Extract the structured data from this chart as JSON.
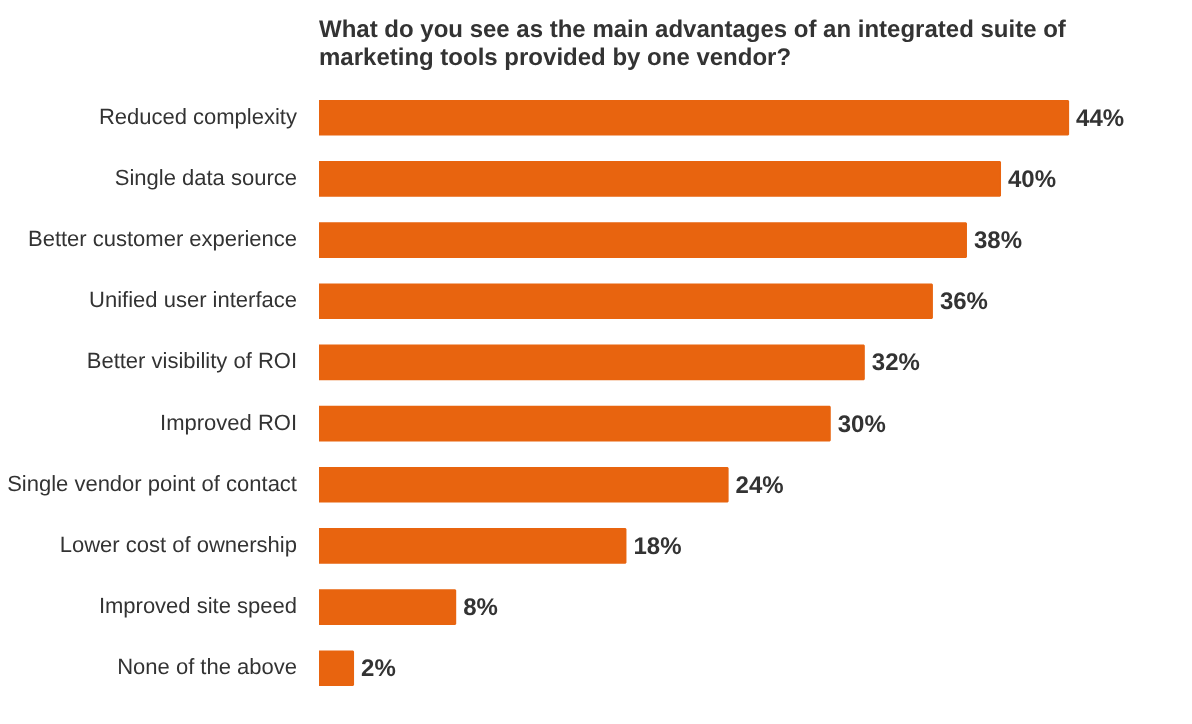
{
  "chart_data": {
    "type": "bar",
    "orientation": "horizontal",
    "title": "What do you see as the main advantages of an integrated suite of marketing tools provided by one vendor?",
    "categories": [
      "Reduced complexity",
      "Single data source",
      "Better customer experience",
      "Unified user interface",
      "Better visibility of ROI",
      "Improved ROI",
      "Single vendor point of contact",
      "Lower cost of ownership",
      "Improved site speed",
      "None of the above"
    ],
    "values": [
      44,
      40,
      38,
      36,
      32,
      30,
      24,
      18,
      8,
      2
    ],
    "value_labels": [
      "44%",
      "40%",
      "38%",
      "36%",
      "32%",
      "30%",
      "24%",
      "18%",
      "8%",
      "2%"
    ],
    "color": "#e8640f",
    "grid": false
  }
}
